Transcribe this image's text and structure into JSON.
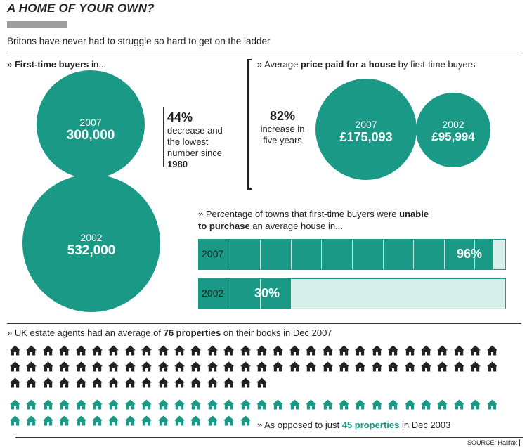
{
  "title": "A HOME OF YOUR OWN?",
  "subtitle": "Britons have never had to struggle so hard to get on the ladder",
  "colors": {
    "teal": "#1a9a86",
    "light_teal": "#d8efea",
    "dark": "#222222"
  },
  "first_time_buyers": {
    "heading_pre": "» ",
    "heading_bold": "First-time buyers",
    "heading_post": " in...",
    "circles": [
      {
        "year": "2007",
        "value": "300,000"
      },
      {
        "year": "2002",
        "value": "532,000"
      }
    ],
    "note_big": "44%",
    "note_text": "decrease and the lowest number since",
    "note_year": "1980"
  },
  "price_paid": {
    "heading_pre": "» Average ",
    "heading_bold": "price paid for a house",
    "heading_post": " by first-time buyers",
    "note_big": "82%",
    "note_text": "increase in five years",
    "circles": [
      {
        "year": "2007",
        "value": "£175,093"
      },
      {
        "year": "2002",
        "value": "£95,994"
      }
    ]
  },
  "towns": {
    "heading_pre": "» Percentage of towns that first-time buyers were ",
    "heading_bold1": "unable",
    "heading_bold2": "to purchase",
    "heading_post": " an average house in..."
  },
  "estate": {
    "heading_pre": "» UK estate agents had an average of ",
    "heading_bold": "76 properties",
    "heading_post": " on their books in Dec 2007",
    "opposed_pre": "» As opposed to just ",
    "opposed_bold": "45 properties",
    "opposed_post": " in Dec 2003"
  },
  "source": "SOURCE: Halifax",
  "chart_data": [
    {
      "type": "bubble",
      "title": "First-time buyers in...",
      "categories": [
        "2007",
        "2002"
      ],
      "values": [
        300000,
        532000
      ]
    },
    {
      "type": "bubble",
      "title": "Average price paid for a house by first-time buyers",
      "categories": [
        "2007",
        "2002"
      ],
      "values": [
        175093,
        95994
      ]
    },
    {
      "type": "bar",
      "title": "Percentage of towns that first-time buyers were unable to purchase an average house in...",
      "categories": [
        "2007",
        "2002"
      ],
      "values": [
        96,
        30
      ],
      "labels": [
        "96%",
        "30%"
      ],
      "ylim": [
        0,
        100
      ]
    },
    {
      "type": "pictogram",
      "categories": [
        "Dec 2007",
        "Dec 2003"
      ],
      "values": [
        76,
        45
      ]
    }
  ]
}
